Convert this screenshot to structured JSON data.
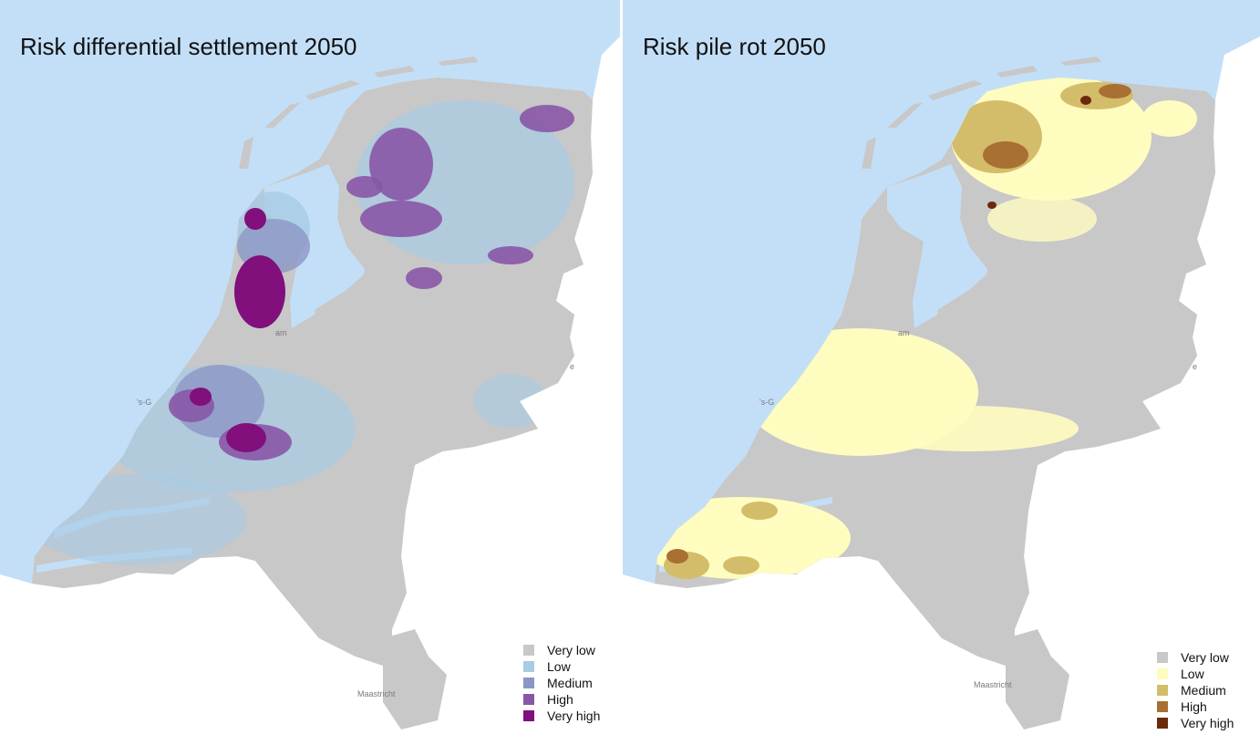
{
  "left_map": {
    "title": "Risk differential settlement 2050",
    "cities": {
      "den_haag": "'s-G",
      "amsterdam": "am",
      "maastricht": "Maastricht",
      "east": "e"
    },
    "legend": [
      {
        "label": "Very low",
        "color": "#c8c8c8"
      },
      {
        "label": "Low",
        "color": "#a9cbe3"
      },
      {
        "label": "Medium",
        "color": "#8c96c6"
      },
      {
        "label": "High",
        "color": "#8856a7"
      },
      {
        "label": "Very high",
        "color": "#810f7c"
      }
    ]
  },
  "right_map": {
    "title": "Risk pile rot 2050",
    "cities": {
      "den_haag": "'s-G",
      "amsterdam": "am",
      "maastricht": "Maastricht",
      "east": "e"
    },
    "legend": [
      {
        "label": "Very low",
        "color": "#c8c8c8"
      },
      {
        "label": "Low",
        "color": "#fffcc0"
      },
      {
        "label": "Medium",
        "color": "#d4bd6a"
      },
      {
        "label": "High",
        "color": "#a87032"
      },
      {
        "label": "Very high",
        "color": "#6b2a0c"
      }
    ]
  },
  "colors": {
    "sea": "#c3dff8",
    "land_outside": "#ffffff",
    "land": "#c8c8c8",
    "lake": "#c3dff8"
  }
}
